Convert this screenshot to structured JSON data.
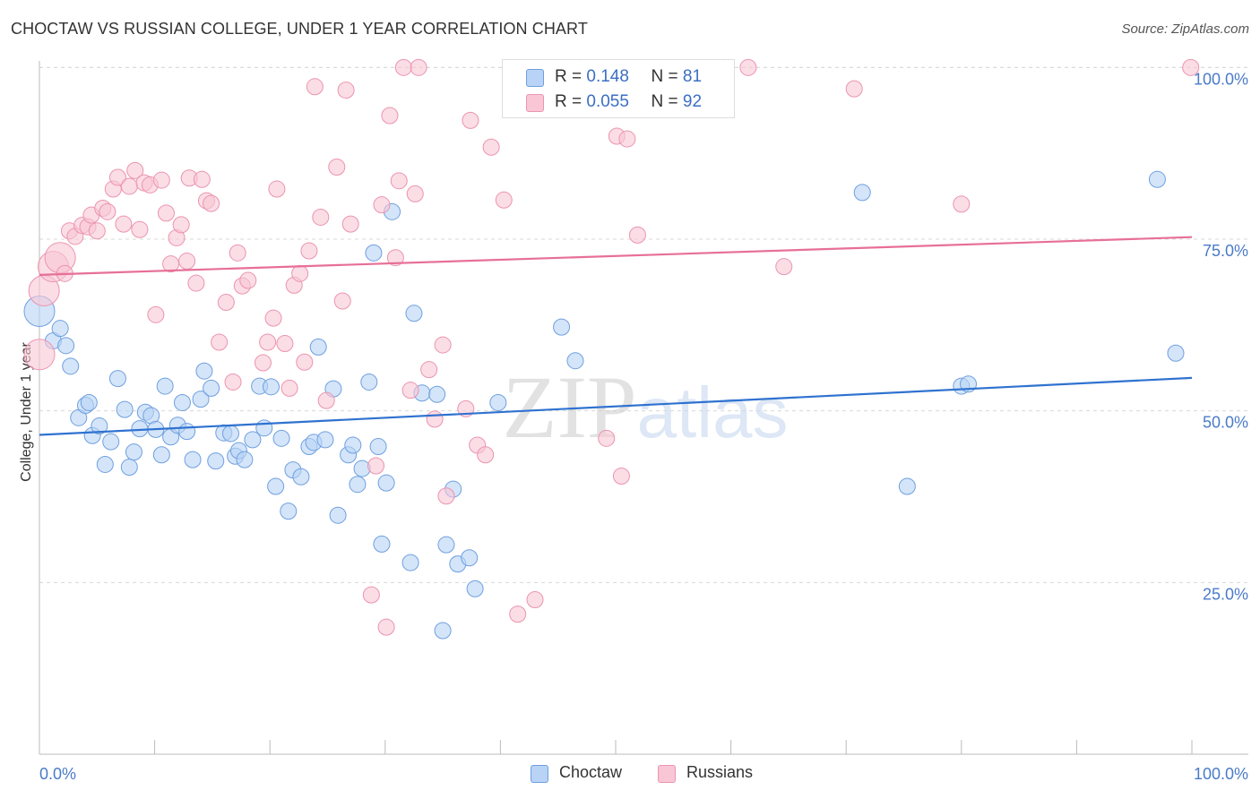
{
  "title": "CHOCTAW VS RUSSIAN COLLEGE, UNDER 1 YEAR CORRELATION CHART",
  "source": "Source: ZipAtlas.com",
  "watermark": "ZIPatlas",
  "colors": {
    "choctaw_fill": "#b8d3f5",
    "choctaw_stroke": "#6f9fdf",
    "choctaw_line": "#2f72d0",
    "russians_fill": "#f9c6d6",
    "russians_stroke": "#eb94b0",
    "russians_line": "#e76f98",
    "tick_label": "#4a7bc8",
    "grid": "#d8d8d8"
  },
  "legend": {
    "rows": [
      {
        "r_label": "R =",
        "r_value": "0.148",
        "n_label": "N =",
        "n_value": "81"
      },
      {
        "r_label": "R =",
        "r_value": "0.055",
        "n_label": "N =",
        "n_value": "92"
      }
    ]
  },
  "chart_data": {
    "type": "scatter",
    "title": "CHOCTAW VS RUSSIAN COLLEGE, UNDER 1 YEAR CORRELATION CHART",
    "xlabel": "",
    "ylabel": "College, Under 1 year",
    "xlim": [
      0,
      100
    ],
    "ylim": [
      0,
      102
    ],
    "x_tick_labels": [
      "0.0%",
      "100.0%"
    ],
    "y_ticks": [
      25,
      50,
      75,
      100
    ],
    "y_tick_labels": [
      "25.0%",
      "50.0%",
      "75.0%",
      "100.0%"
    ],
    "grid": "horizontal dashed",
    "legend_position": "top-center",
    "series": [
      {
        "name": "Choctaw",
        "trend": {
          "x": [
            0,
            100
          ],
          "y": [
            46.5,
            54.8
          ]
        },
        "points": [
          {
            "x": 0.0,
            "y": 64.5,
            "size": "large"
          },
          {
            "x": 1.2,
            "y": 60.2
          },
          {
            "x": 1.8,
            "y": 62.0
          },
          {
            "x": 2.3,
            "y": 59.5
          },
          {
            "x": 2.7,
            "y": 56.5
          },
          {
            "x": 3.4,
            "y": 49.0
          },
          {
            "x": 4.0,
            "y": 50.8
          },
          {
            "x": 4.3,
            "y": 51.2
          },
          {
            "x": 4.6,
            "y": 46.4
          },
          {
            "x": 5.2,
            "y": 47.8
          },
          {
            "x": 5.7,
            "y": 42.2
          },
          {
            "x": 6.2,
            "y": 45.5
          },
          {
            "x": 6.8,
            "y": 54.7
          },
          {
            "x": 7.4,
            "y": 50.2
          },
          {
            "x": 7.8,
            "y": 41.8
          },
          {
            "x": 8.2,
            "y": 44.0
          },
          {
            "x": 8.7,
            "y": 47.4
          },
          {
            "x": 9.2,
            "y": 49.8
          },
          {
            "x": 9.7,
            "y": 49.3
          },
          {
            "x": 10.1,
            "y": 47.3
          },
          {
            "x": 10.6,
            "y": 43.6
          },
          {
            "x": 10.9,
            "y": 53.6
          },
          {
            "x": 11.4,
            "y": 46.2
          },
          {
            "x": 12.0,
            "y": 47.9
          },
          {
            "x": 12.4,
            "y": 51.2
          },
          {
            "x": 12.8,
            "y": 47.0
          },
          {
            "x": 13.3,
            "y": 42.9
          },
          {
            "x": 14.0,
            "y": 51.7
          },
          {
            "x": 14.3,
            "y": 55.8
          },
          {
            "x": 14.9,
            "y": 53.3
          },
          {
            "x": 15.3,
            "y": 42.7
          },
          {
            "x": 16.0,
            "y": 46.8
          },
          {
            "x": 16.6,
            "y": 46.7
          },
          {
            "x": 17.0,
            "y": 43.4
          },
          {
            "x": 17.3,
            "y": 44.2
          },
          {
            "x": 17.8,
            "y": 42.9
          },
          {
            "x": 18.5,
            "y": 45.8
          },
          {
            "x": 19.1,
            "y": 53.6
          },
          {
            "x": 19.5,
            "y": 47.5
          },
          {
            "x": 20.1,
            "y": 53.5
          },
          {
            "x": 20.5,
            "y": 39.0
          },
          {
            "x": 21.0,
            "y": 46.0
          },
          {
            "x": 21.6,
            "y": 35.4
          },
          {
            "x": 22.0,
            "y": 41.4
          },
          {
            "x": 22.7,
            "y": 40.4
          },
          {
            "x": 23.4,
            "y": 44.8
          },
          {
            "x": 23.8,
            "y": 45.4
          },
          {
            "x": 24.2,
            "y": 59.3
          },
          {
            "x": 24.8,
            "y": 45.8
          },
          {
            "x": 25.5,
            "y": 53.2
          },
          {
            "x": 25.9,
            "y": 34.8
          },
          {
            "x": 26.8,
            "y": 43.6
          },
          {
            "x": 27.2,
            "y": 45.0
          },
          {
            "x": 27.6,
            "y": 39.3
          },
          {
            "x": 28.0,
            "y": 41.6
          },
          {
            "x": 28.6,
            "y": 54.2
          },
          {
            "x": 29.0,
            "y": 73.0
          },
          {
            "x": 29.4,
            "y": 44.8
          },
          {
            "x": 29.7,
            "y": 30.6
          },
          {
            "x": 30.1,
            "y": 39.5
          },
          {
            "x": 30.6,
            "y": 79.0
          },
          {
            "x": 32.2,
            "y": 27.9
          },
          {
            "x": 32.5,
            "y": 64.2
          },
          {
            "x": 33.2,
            "y": 52.6
          },
          {
            "x": 34.5,
            "y": 52.4
          },
          {
            "x": 35.0,
            "y": 18.0
          },
          {
            "x": 35.3,
            "y": 30.5
          },
          {
            "x": 35.9,
            "y": 38.6
          },
          {
            "x": 36.3,
            "y": 27.7
          },
          {
            "x": 37.3,
            "y": 28.6
          },
          {
            "x": 37.8,
            "y": 24.1
          },
          {
            "x": 39.8,
            "y": 51.2
          },
          {
            "x": 45.3,
            "y": 62.2
          },
          {
            "x": 46.5,
            "y": 57.3
          },
          {
            "x": 71.4,
            "y": 81.8
          },
          {
            "x": 75.3,
            "y": 39.0
          },
          {
            "x": 80.0,
            "y": 53.6
          },
          {
            "x": 80.6,
            "y": 53.9
          },
          {
            "x": 97.0,
            "y": 83.7
          },
          {
            "x": 98.6,
            "y": 58.4
          }
        ]
      },
      {
        "name": "Russians",
        "trend": {
          "x": [
            0,
            100
          ],
          "y": [
            69.8,
            75.3
          ]
        },
        "points": [
          {
            "x": 0.0,
            "y": 58.2,
            "size": "large"
          },
          {
            "x": 0.4,
            "y": 67.5,
            "size": "large"
          },
          {
            "x": 1.2,
            "y": 71.0,
            "size": "large"
          },
          {
            "x": 1.8,
            "y": 72.3,
            "size": "large"
          },
          {
            "x": 2.2,
            "y": 70.0
          },
          {
            "x": 2.6,
            "y": 76.2
          },
          {
            "x": 3.1,
            "y": 75.4
          },
          {
            "x": 3.7,
            "y": 77.0
          },
          {
            "x": 4.2,
            "y": 76.8
          },
          {
            "x": 4.5,
            "y": 78.5
          },
          {
            "x": 5.0,
            "y": 76.2
          },
          {
            "x": 5.5,
            "y": 79.5
          },
          {
            "x": 5.9,
            "y": 79.0
          },
          {
            "x": 6.4,
            "y": 82.3
          },
          {
            "x": 6.8,
            "y": 84.0
          },
          {
            "x": 7.3,
            "y": 77.2
          },
          {
            "x": 7.8,
            "y": 82.7
          },
          {
            "x": 8.3,
            "y": 85.0
          },
          {
            "x": 8.7,
            "y": 76.4
          },
          {
            "x": 9.1,
            "y": 83.2
          },
          {
            "x": 9.6,
            "y": 82.9
          },
          {
            "x": 10.1,
            "y": 64.0
          },
          {
            "x": 10.6,
            "y": 83.6
          },
          {
            "x": 11.0,
            "y": 78.8
          },
          {
            "x": 11.4,
            "y": 71.4
          },
          {
            "x": 11.9,
            "y": 75.2
          },
          {
            "x": 12.3,
            "y": 77.1
          },
          {
            "x": 12.8,
            "y": 71.8
          },
          {
            "x": 13.0,
            "y": 83.9
          },
          {
            "x": 13.6,
            "y": 68.6
          },
          {
            "x": 14.1,
            "y": 83.7
          },
          {
            "x": 14.5,
            "y": 80.6
          },
          {
            "x": 14.9,
            "y": 80.2
          },
          {
            "x": 15.6,
            "y": 60.0
          },
          {
            "x": 16.2,
            "y": 65.8
          },
          {
            "x": 16.8,
            "y": 54.2
          },
          {
            "x": 17.2,
            "y": 73.0
          },
          {
            "x": 17.6,
            "y": 68.2
          },
          {
            "x": 18.1,
            "y": 69.0
          },
          {
            "x": 19.4,
            "y": 57.0
          },
          {
            "x": 19.8,
            "y": 60.0
          },
          {
            "x": 20.3,
            "y": 63.5
          },
          {
            "x": 20.6,
            "y": 82.3
          },
          {
            "x": 21.3,
            "y": 59.8
          },
          {
            "x": 21.7,
            "y": 53.3
          },
          {
            "x": 22.1,
            "y": 68.3
          },
          {
            "x": 22.6,
            "y": 70.0
          },
          {
            "x": 23.0,
            "y": 57.1
          },
          {
            "x": 23.4,
            "y": 73.3
          },
          {
            "x": 23.9,
            "y": 97.2
          },
          {
            "x": 24.4,
            "y": 78.2
          },
          {
            "x": 24.9,
            "y": 51.5
          },
          {
            "x": 25.8,
            "y": 85.5
          },
          {
            "x": 26.3,
            "y": 66.0
          },
          {
            "x": 26.6,
            "y": 96.7
          },
          {
            "x": 27.0,
            "y": 77.2
          },
          {
            "x": 28.8,
            "y": 23.2
          },
          {
            "x": 29.2,
            "y": 42.0
          },
          {
            "x": 29.7,
            "y": 80.0
          },
          {
            "x": 30.1,
            "y": 18.5
          },
          {
            "x": 30.4,
            "y": 93.0
          },
          {
            "x": 30.9,
            "y": 72.3
          },
          {
            "x": 31.2,
            "y": 83.5
          },
          {
            "x": 31.6,
            "y": 100.0
          },
          {
            "x": 32.2,
            "y": 53.0
          },
          {
            "x": 32.6,
            "y": 81.6
          },
          {
            "x": 32.9,
            "y": 100.0
          },
          {
            "x": 33.8,
            "y": 56.0
          },
          {
            "x": 34.3,
            "y": 48.8
          },
          {
            "x": 35.0,
            "y": 59.6
          },
          {
            "x": 35.3,
            "y": 37.6
          },
          {
            "x": 37.0,
            "y": 50.3
          },
          {
            "x": 37.4,
            "y": 92.3
          },
          {
            "x": 38.0,
            "y": 45.0
          },
          {
            "x": 38.7,
            "y": 43.6
          },
          {
            "x": 39.2,
            "y": 88.4
          },
          {
            "x": 40.3,
            "y": 80.7
          },
          {
            "x": 41.5,
            "y": 20.4
          },
          {
            "x": 43.0,
            "y": 22.5
          },
          {
            "x": 46.9,
            "y": 100.0
          },
          {
            "x": 49.2,
            "y": 46.0
          },
          {
            "x": 50.1,
            "y": 90.0
          },
          {
            "x": 50.5,
            "y": 40.5
          },
          {
            "x": 51.0,
            "y": 89.6
          },
          {
            "x": 51.9,
            "y": 75.6
          },
          {
            "x": 59.5,
            "y": 100.0
          },
          {
            "x": 61.5,
            "y": 100.0
          },
          {
            "x": 64.6,
            "y": 71.0
          },
          {
            "x": 70.7,
            "y": 96.9
          },
          {
            "x": 80.0,
            "y": 80.1
          },
          {
            "x": 99.9,
            "y": 100.0
          }
        ]
      }
    ]
  },
  "bottom_legend": [
    {
      "label": "Choctaw"
    },
    {
      "label": "Russians"
    }
  ]
}
